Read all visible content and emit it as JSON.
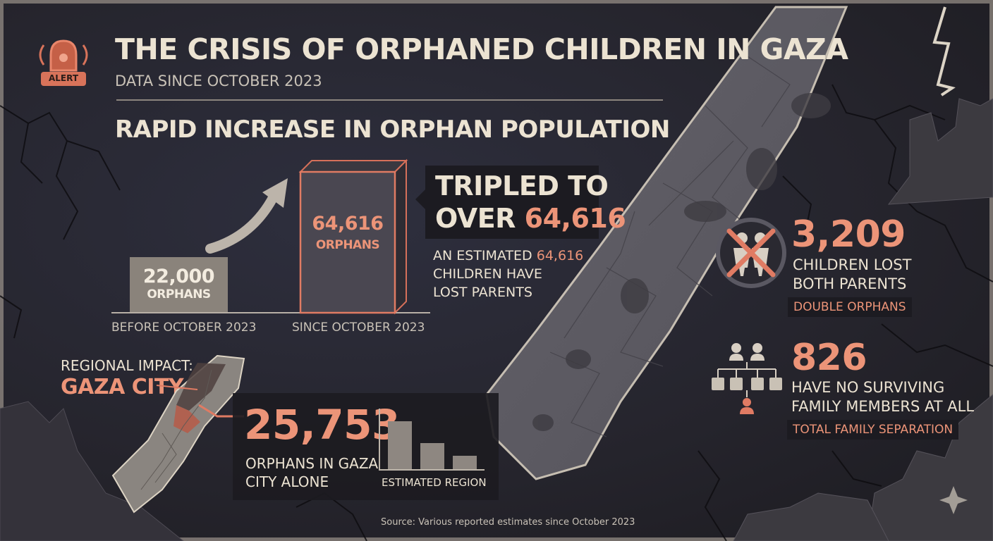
{
  "colors": {
    "accent": "#ec9478",
    "text": "#ece3d2",
    "background": "#2a2933",
    "box": "#4a4650"
  },
  "header": {
    "alert_label": "ALERT",
    "title": "THE CRISIS OF ORPHANED CHILDREN IN GAZA",
    "subtitle": "DATA SINCE OCTOBER 2023"
  },
  "increase": {
    "heading": "RAPID INCREASE IN ORPHAN POPULATION",
    "before": {
      "value": "22,000",
      "unit": "ORPHANS",
      "label": "BEFORE OCTOBER 2023"
    },
    "since": {
      "value": "64,616",
      "unit": "ORPHANS",
      "label": "SINCE OCTOBER 2023"
    },
    "callout_line1": "TRIPLED TO",
    "callout_over": "OVER",
    "callout_value": "64,616",
    "note_pre": "AN ESTIMATED",
    "note_value": "64,616",
    "note_line2": "CHILDREN HAVE",
    "note_line3": "LOST PARENTS"
  },
  "regional": {
    "label": "REGIONAL IMPACT:",
    "city": "GAZA CITY",
    "value": "25,753",
    "desc_line1": "ORPHANS IN GAZA",
    "desc_line2": "CITY ALONE",
    "mini_chart_label": "ESTIMATED REGION",
    "mini_chart_values": [
      1.0,
      0.55,
      0.28
    ]
  },
  "double_orphans": {
    "icon": "crossed-parents-icon",
    "value": "3,209",
    "line1": "CHILDREN LOST",
    "line2": "BOTH PARENTS",
    "tag": "DOUBLE ORPHANS"
  },
  "no_family": {
    "icon": "family-tree-icon",
    "value": "826",
    "line1": "HAVE NO SURVIVING",
    "line2": "FAMILY MEMBERS AT ALL",
    "tag": "TOTAL FAMILY SEPARATION"
  },
  "source": "Source: Various reported estimates since October 2023"
}
